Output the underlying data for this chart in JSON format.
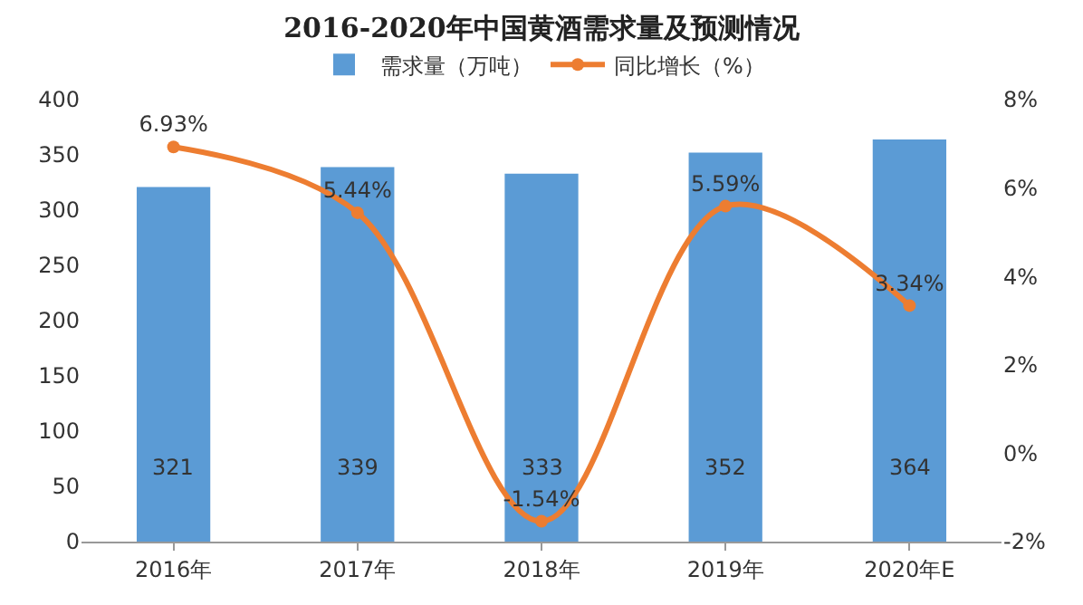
{
  "chart_data": {
    "type": "bar",
    "title": "2016-2020年中国黄酒需求量及预测情况",
    "categories": [
      "2016年",
      "2017年",
      "2018年",
      "2019年",
      "2020年E"
    ],
    "series": [
      {
        "name": "需求量（万吨）",
        "color": "#5b9bd5",
        "values": [
          321,
          339,
          333,
          352,
          364
        ],
        "value_labels": [
          "321",
          "339",
          "333",
          "352",
          "364"
        ]
      },
      {
        "name": "同比增长（%）",
        "type": "line",
        "axis": "y2",
        "color": "#ed7d31",
        "values": [
          6.93,
          5.44,
          -1.54,
          5.59,
          3.34
        ],
        "value_labels": [
          "6.93%",
          "5.44%",
          "-1.54%",
          "5.59%",
          "3.34%"
        ]
      }
    ],
    "ylim": [
      0,
      400
    ],
    "yticks": [
      0,
      50,
      100,
      150,
      200,
      250,
      300,
      350,
      400
    ],
    "y2lim": [
      -2,
      8
    ],
    "y2ticks": [
      {
        "value": -2,
        "label": "-2%"
      },
      {
        "value": 0,
        "label": "0%"
      },
      {
        "value": 2,
        "label": "2%"
      },
      {
        "value": 4,
        "label": "4%"
      },
      {
        "value": 6,
        "label": "6%"
      },
      {
        "value": 8,
        "label": "8%"
      }
    ],
    "legend": "top",
    "grid": false,
    "marker": "circle",
    "line_style": "solid"
  }
}
